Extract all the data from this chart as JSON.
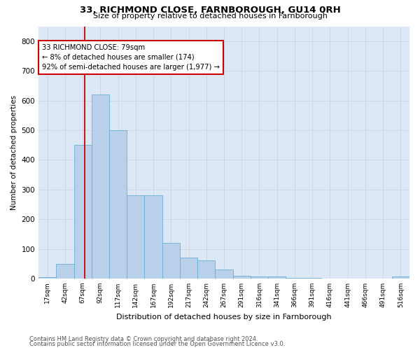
{
  "title1": "33, RICHMOND CLOSE, FARNBOROUGH, GU14 0RH",
  "title2": "Size of property relative to detached houses in Farnborough",
  "xlabel": "Distribution of detached houses by size in Farnborough",
  "ylabel": "Number of detached properties",
  "bin_labels": [
    "17sqm",
    "42sqm",
    "67sqm",
    "92sqm",
    "117sqm",
    "142sqm",
    "167sqm",
    "192sqm",
    "217sqm",
    "242sqm",
    "267sqm",
    "291sqm",
    "316sqm",
    "341sqm",
    "366sqm",
    "391sqm",
    "416sqm",
    "441sqm",
    "466sqm",
    "491sqm",
    "516sqm"
  ],
  "bar_values": [
    5,
    50,
    450,
    620,
    500,
    280,
    280,
    120,
    70,
    60,
    30,
    10,
    8,
    8,
    3,
    3,
    0,
    0,
    0,
    0,
    8
  ],
  "bar_color": "#b8d0ea",
  "bar_edge_color": "#6aaed6",
  "vline_color": "#cc0000",
  "vline_x": 2.12,
  "annotation_text": "33 RICHMOND CLOSE: 79sqm\n← 8% of detached houses are smaller (174)\n92% of semi-detached houses are larger (1,977) →",
  "annotation_box_facecolor": "#ffffff",
  "annotation_box_edgecolor": "#cc0000",
  "ylim": [
    0,
    850
  ],
  "yticks": [
    0,
    100,
    200,
    300,
    400,
    500,
    600,
    700,
    800
  ],
  "grid_color": "#d0d8e8",
  "background_color": "#dce8f5",
  "footer1": "Contains HM Land Registry data © Crown copyright and database right 2024.",
  "footer2": "Contains public sector information licensed under the Open Government Licence v3.0."
}
